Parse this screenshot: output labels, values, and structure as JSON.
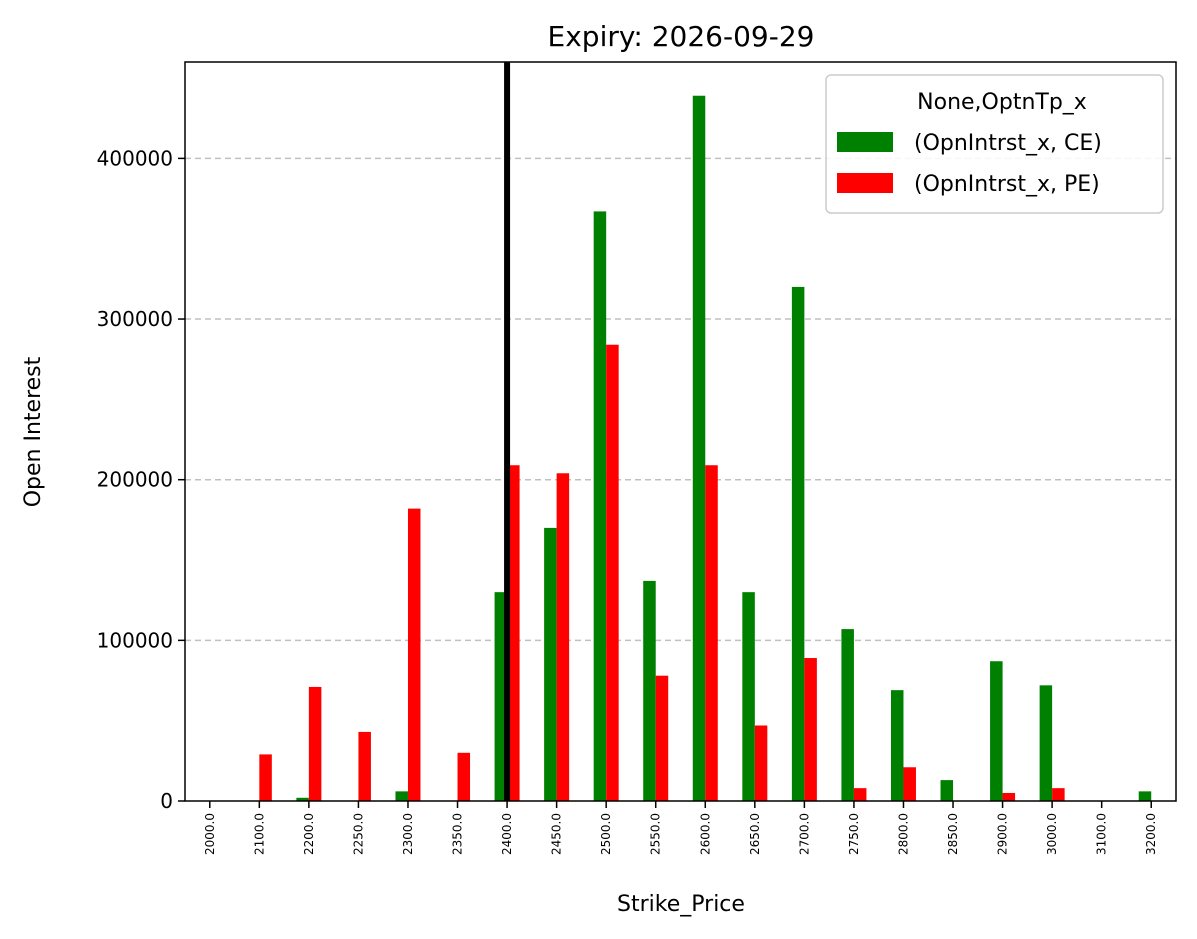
{
  "chart_data": {
    "type": "bar",
    "title": "Expiry: 2026-09-29",
    "xlabel": "Strike_Price",
    "ylabel": "Open Interest",
    "categories": [
      "2000.0",
      "2100.0",
      "2200.0",
      "2250.0",
      "2300.0",
      "2350.0",
      "2400.0",
      "2450.0",
      "2500.0",
      "2550.0",
      "2600.0",
      "2650.0",
      "2700.0",
      "2750.0",
      "2800.0",
      "2850.0",
      "2900.0",
      "3000.0",
      "3100.0",
      "3200.0"
    ],
    "series": [
      {
        "name": "(OpnIntrst_x, CE)",
        "color": "#008000",
        "values": [
          0,
          0,
          2000,
          0,
          6000,
          0,
          130000,
          170000,
          367000,
          137000,
          439000,
          130000,
          320000,
          107000,
          69000,
          13000,
          87000,
          72000,
          0,
          6000
        ]
      },
      {
        "name": "(OpnIntrst_x, PE)",
        "color": "#ff0000",
        "values": [
          0,
          29000,
          71000,
          43000,
          182000,
          30000,
          209000,
          204000,
          284000,
          78000,
          209000,
          47000,
          89000,
          8000,
          21000,
          0,
          5000,
          8000,
          0,
          0
        ]
      }
    ],
    "ylim": [
      0,
      460000
    ],
    "yticks": [
      0,
      100000,
      200000,
      300000,
      400000
    ],
    "ytick_labels": [
      "0",
      "100000",
      "200000",
      "300000",
      "400000"
    ],
    "grid": "y-dashed",
    "legend": {
      "title": "None,OptnTp_x",
      "placement": "top-right"
    },
    "vline": {
      "category": "2400.0",
      "color": "#000000"
    }
  }
}
